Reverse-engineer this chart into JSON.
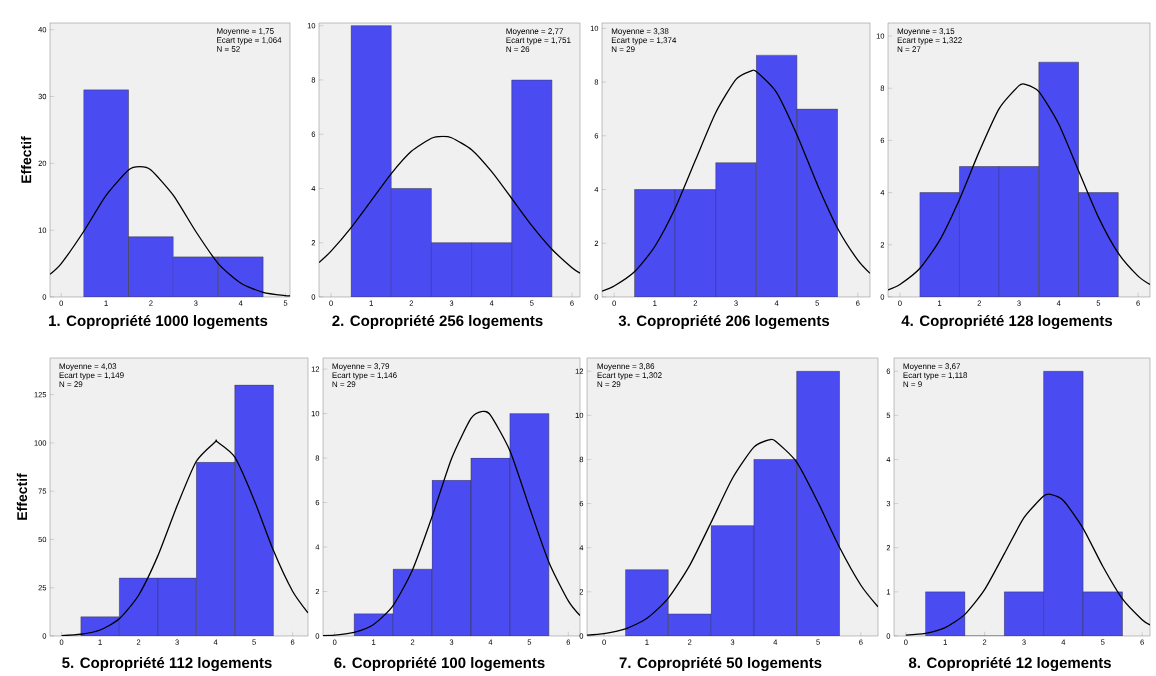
{
  "chart_data": [
    {
      "type": "histogram",
      "title": "1. Copropriété 1000 logements",
      "ylabel": "Effectif",
      "annotations": [
        "Moyenne = 1,75",
        "Ecart type = 1,064",
        "N = 52"
      ],
      "bins": [
        0.5,
        1.5,
        2.5,
        3.5,
        4.5
      ],
      "values": [
        31,
        9,
        6,
        6
      ],
      "color": "#4b4bf2",
      "xlim": [
        -0.25,
        5.1
      ],
      "ylim": [
        0,
        41
      ],
      "xticks": [
        0,
        1,
        2,
        3,
        4,
        5
      ],
      "yticks": [
        0,
        10,
        20,
        30,
        40
      ],
      "series": [
        {
          "type": "line",
          "color": "#000000",
          "x": [
            -0.25,
            0,
            0.5,
            1,
            1.5,
            1.75,
            2,
            2.5,
            3,
            3.5,
            4,
            4.5,
            5,
            5.1
          ],
          "values": [
            3.4,
            5.0,
            9.8,
            15.2,
            19.0,
            19.5,
            19.0,
            15.2,
            9.8,
            5.0,
            2.1,
            0.7,
            0.2,
            0.2
          ]
        }
      ]
    },
    {
      "type": "histogram",
      "title": "2. Copropriété 256 logements",
      "annotations": [
        "Moyenne = 2,77",
        "Ecart type = 1,751",
        "N = 26"
      ],
      "bins": [
        0.5,
        1.5,
        2.5,
        3.5,
        4.5,
        5.5
      ],
      "values": [
        10,
        4,
        2,
        2,
        8
      ],
      "color": "#4b4bf2",
      "xlim": [
        -0.3,
        6.2
      ],
      "ylim": [
        0,
        10.1
      ],
      "xticks": [
        0,
        1,
        2,
        3,
        4,
        5,
        6
      ],
      "yticks": [
        0,
        2,
        4,
        6,
        8,
        10
      ],
      "series": [
        {
          "type": "line",
          "color": "#000000",
          "x": [
            -0.3,
            0,
            0.5,
            1,
            1.5,
            2,
            2.5,
            2.77,
            3,
            3.5,
            4,
            4.5,
            5,
            5.5,
            6,
            6.2
          ],
          "values": [
            1.27,
            1.69,
            2.56,
            3.55,
            4.55,
            5.37,
            5.85,
            5.92,
            5.87,
            5.43,
            4.62,
            3.63,
            2.63,
            1.76,
            1.08,
            0.88
          ]
        }
      ]
    },
    {
      "type": "histogram",
      "title": "3. Copropriété 206 logements",
      "annotations": [
        "Moyenne = 3,38",
        "Ecart type = 1,374",
        "N = 29"
      ],
      "bins": [
        0.5,
        1.5,
        2.5,
        3.5,
        4.5,
        5.5
      ],
      "values": [
        4,
        4,
        5,
        9,
        7
      ],
      "color": "#4b4bf2",
      "xlim": [
        -0.3,
        6.3
      ],
      "ylim": [
        0,
        10.2
      ],
      "xticks": [
        0,
        1,
        2,
        3,
        4,
        5,
        6
      ],
      "yticks": [
        0,
        2,
        4,
        6,
        8,
        10
      ],
      "series": [
        {
          "type": "line",
          "color": "#000000",
          "x": [
            -0.3,
            0,
            0.5,
            1,
            1.5,
            2,
            2.5,
            3,
            3.38,
            3.5,
            4,
            4.5,
            5,
            5.5,
            6,
            6.3
          ],
          "values": [
            0.22,
            0.41,
            0.94,
            1.88,
            3.3,
            5.09,
            6.86,
            8.1,
            8.42,
            8.39,
            7.61,
            6.04,
            4.2,
            2.56,
            1.37,
            0.88
          ]
        }
      ]
    },
    {
      "type": "histogram",
      "title": "4. Copropriété 128 logements",
      "annotations": [
        "Moyenne = 3,15",
        "Ecart type = 1,322",
        "N = 27"
      ],
      "bins": [
        0.5,
        1.5,
        2.5,
        3.5,
        4.5,
        5.5
      ],
      "values": [
        4,
        5,
        5,
        9,
        4
      ],
      "color": "#4b4bf2",
      "xlim": [
        -0.3,
        6.3
      ],
      "ylim": [
        0,
        10.5
      ],
      "xticks": [
        0,
        1,
        2,
        3,
        4,
        5,
        6
      ],
      "yticks": [
        0,
        2,
        4,
        6,
        8,
        10
      ],
      "series": [
        {
          "type": "line",
          "color": "#000000",
          "x": [
            -0.3,
            0,
            0.5,
            1,
            1.5,
            2,
            2.5,
            3,
            3.15,
            3.5,
            4,
            4.5,
            5,
            5.5,
            6,
            6.3
          ],
          "values": [
            0.27,
            0.48,
            1.09,
            2.17,
            3.74,
            5.58,
            7.22,
            8.1,
            8.15,
            7.87,
            6.63,
            4.84,
            3.06,
            1.68,
            0.8,
            0.48
          ]
        }
      ]
    },
    {
      "type": "histogram",
      "title": "5. Copropriété 112 logements",
      "ylabel": "Effectif",
      "annotations": [
        "Moyenne = 4,03",
        "Ecart type = 1,149",
        "N = 29"
      ],
      "bins": [
        0.5,
        1.5,
        2.5,
        3.5,
        4.5,
        5.5
      ],
      "values": [
        10,
        30,
        30,
        90,
        130
      ],
      "color": "#4b4bf2",
      "xlim": [
        -0.3,
        6.4
      ],
      "ylim": [
        0,
        144
      ],
      "xticks": [
        0,
        1,
        2,
        3,
        4,
        5,
        6
      ],
      "yticks": [
        0,
        25,
        50,
        75,
        100,
        125
      ],
      "series": [
        {
          "type": "line",
          "color": "#000000",
          "x": [
            0,
            0.5,
            1,
            1.5,
            2,
            2.5,
            3,
            3.5,
            4,
            4.03,
            4.5,
            5,
            5.5,
            6,
            6.4
          ],
          "values": [
            0.2,
            0.9,
            3.1,
            8.9,
            21.1,
            41.5,
            67.4,
            90.5,
            100.7,
            100.7,
            92.6,
            70.5,
            44.4,
            23.2,
            12.0
          ]
        }
      ]
    },
    {
      "type": "histogram",
      "title": "6. Copropriété 100 logements",
      "annotations": [
        "Moyenne = 3,79",
        "Ecart type = 1,146",
        "N = 29"
      ],
      "bins": [
        0.5,
        1.5,
        2.5,
        3.5,
        4.5,
        5.5
      ],
      "values": [
        1,
        3,
        7,
        8,
        10
      ],
      "color": "#4b4bf2",
      "xlim": [
        -0.3,
        6.3
      ],
      "ylim": [
        0,
        12.5
      ],
      "xticks": [
        0,
        1,
        2,
        3,
        4,
        5,
        6
      ],
      "yticks": [
        0,
        2,
        4,
        6,
        8,
        10,
        12
      ],
      "series": [
        {
          "type": "line",
          "color": "#000000",
          "x": [
            -0.3,
            0,
            0.5,
            1,
            1.5,
            2,
            2.5,
            3,
            3.5,
            3.79,
            4,
            4.5,
            5,
            5.5,
            6,
            6.3
          ],
          "values": [
            0.02,
            0.04,
            0.16,
            0.52,
            1.37,
            2.98,
            5.36,
            7.97,
            9.78,
            10.1,
            9.93,
            8.33,
            5.79,
            3.32,
            1.58,
            0.92
          ]
        }
      ]
    },
    {
      "type": "histogram",
      "title": "7. Copropriété 50 logements",
      "annotations": [
        "Moyenne = 3,86",
        "Ecart type = 1,302",
        "N = 29"
      ],
      "bins": [
        0.5,
        1.5,
        2.5,
        3.5,
        4.5,
        5.5
      ],
      "values": [
        3,
        1,
        5,
        8,
        12
      ],
      "color": "#4b4bf2",
      "xlim": [
        -0.4,
        6.4
      ],
      "ylim": [
        0,
        12.6
      ],
      "xticks": [
        0,
        1,
        2,
        3,
        4,
        5,
        6
      ],
      "yticks": [
        0,
        2,
        4,
        6,
        8,
        10,
        12
      ],
      "series": [
        {
          "type": "line",
          "color": "#000000",
          "x": [
            -0.4,
            0,
            0.5,
            1,
            1.5,
            2,
            2.5,
            3,
            3.5,
            3.86,
            4,
            4.5,
            5,
            5.5,
            6,
            6.4
          ],
          "values": [
            0.04,
            0.11,
            0.32,
            0.8,
            1.72,
            3.2,
            5.15,
            7.15,
            8.56,
            8.89,
            8.84,
            7.88,
            6.05,
            4.02,
            2.3,
            1.32
          ]
        }
      ]
    },
    {
      "type": "histogram",
      "title": "8. Copropriété 12 logements",
      "annotations": [
        "Moyenne = 3,67",
        "Ecart type = 1,118",
        "N = 9"
      ],
      "bins": [
        0.5,
        1.5,
        2.5,
        3.5,
        4.5,
        5.5
      ],
      "values": [
        1,
        0,
        1,
        6,
        1
      ],
      "color": "#4b4bf2",
      "xlim": [
        -0.3,
        6.2
      ],
      "ylim": [
        0,
        6.3
      ],
      "xticks": [
        0,
        1,
        2,
        3,
        4,
        5,
        6
      ],
      "yticks": [
        0,
        1,
        2,
        3,
        4,
        5,
        6
      ],
      "series": [
        {
          "type": "line",
          "color": "#000000",
          "x": [
            0,
            0.5,
            1,
            1.5,
            2,
            2.5,
            3,
            3.5,
            3.67,
            4,
            4.5,
            5,
            5.5,
            6,
            6.2
          ],
          "values": [
            0.02,
            0.06,
            0.19,
            0.49,
            1.05,
            1.86,
            2.68,
            3.17,
            3.21,
            3.07,
            2.44,
            1.58,
            0.84,
            0.37,
            0.25
          ]
        }
      ]
    }
  ]
}
